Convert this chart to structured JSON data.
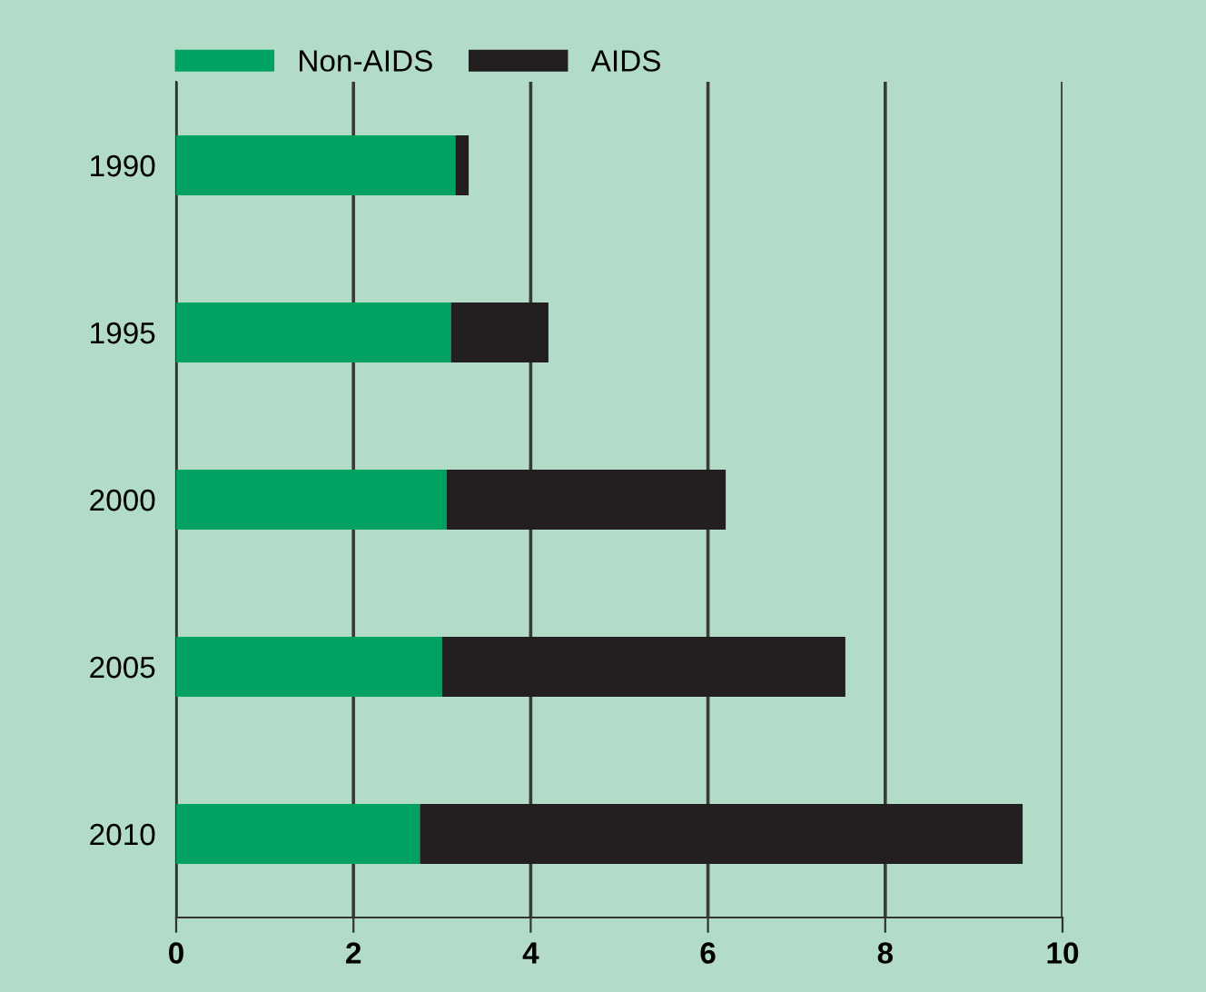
{
  "chart_data": {
    "type": "bar",
    "orientation": "horizontal",
    "stacked": true,
    "categories": [
      "1990",
      "1995",
      "2000",
      "2005",
      "2010"
    ],
    "series": [
      {
        "name": "Non-AIDS",
        "color": "#00a261",
        "values": [
          3.15,
          3.1,
          3.05,
          3.0,
          2.75
        ]
      },
      {
        "name": "AIDS",
        "color": "#231f20",
        "values": [
          0.15,
          1.1,
          3.15,
          4.55,
          6.8
        ]
      }
    ],
    "xlim": [
      0,
      10
    ],
    "xticks": [
      0,
      2,
      4,
      6,
      8,
      10
    ],
    "grid": "x",
    "legend": "top left"
  }
}
